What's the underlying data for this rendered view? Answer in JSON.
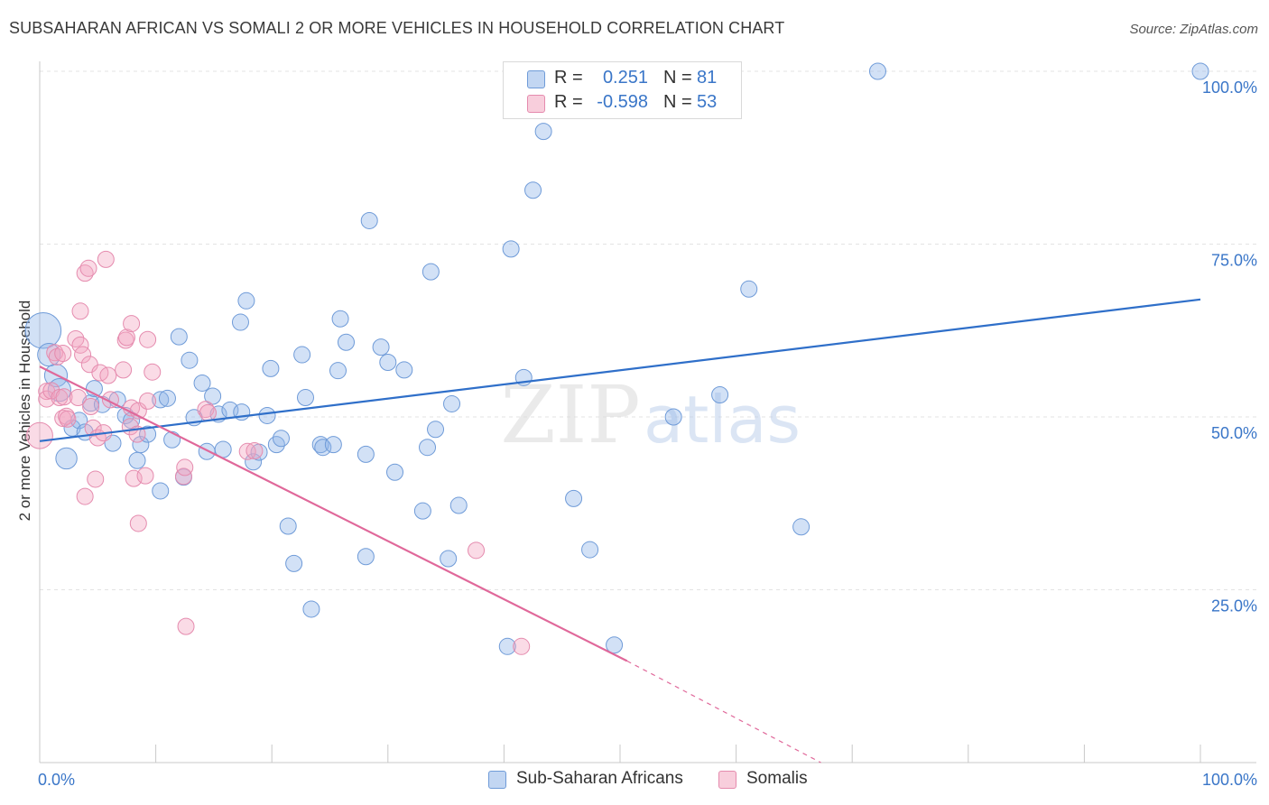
{
  "header": {
    "title": "SUBSAHARAN AFRICAN VS SOMALI 2 OR MORE VEHICLES IN HOUSEHOLD CORRELATION CHART",
    "source": "Source: ZipAtlas.com"
  },
  "watermark": {
    "zip": "ZIP",
    "atlas": "atlas"
  },
  "legend": {
    "rows": [
      {
        "r_label": "R =",
        "r_value": "0.251",
        "n_label": "N =",
        "n_value": "81",
        "color": "#8fb4e8"
      },
      {
        "r_label": "R =",
        "r_value": "-0.598",
        "n_label": "N =",
        "n_value": "53",
        "color": "#f2a5c0"
      }
    ]
  },
  "bottom_legend": {
    "items": [
      {
        "label": "Sub-Saharan Africans",
        "color": "#8fb4e8"
      },
      {
        "label": "Somalis",
        "color": "#f2a5c0"
      }
    ]
  },
  "chart_data": {
    "type": "scatter",
    "title": "SUBSAHARAN AFRICAN VS SOMALI 2 OR MORE VEHICLES IN HOUSEHOLD CORRELATION CHART",
    "xlabel": "",
    "ylabel": "2 or more Vehicles in Household",
    "xlim": [
      0,
      100
    ],
    "ylim": [
      0,
      100
    ],
    "x_tick_labels": [
      {
        "value": 0,
        "label": "0.0%"
      },
      {
        "value": 100,
        "label": "100.0%"
      }
    ],
    "y_tick_labels": [
      {
        "value": 25,
        "label": "25.0%"
      },
      {
        "value": 50,
        "label": "50.0%"
      },
      {
        "value": 75,
        "label": "75.0%"
      },
      {
        "value": 100,
        "label": "100.0%"
      }
    ],
    "grid": "horizontal dashed",
    "legend_position": "top-center",
    "series": [
      {
        "name": "Sub-Saharan Africans",
        "color": "#8fb4e8",
        "trend_color": "#2f6fc9",
        "trend": {
          "x": [
            0,
            100
          ],
          "y": [
            46.5,
            67.0
          ]
        },
        "points": [
          [
            0.3,
            62.5,
            2.2
          ],
          [
            0.8,
            59.0,
            1.4
          ],
          [
            1.4,
            56.0,
            1.4
          ],
          [
            1.7,
            53.9,
            1.4
          ],
          [
            2.3,
            44.0,
            1.3
          ],
          [
            2.8,
            48.4,
            1.0
          ],
          [
            3.4,
            49.5,
            1.0
          ],
          [
            3.9,
            47.8,
            1.0
          ],
          [
            4.4,
            52.0,
            1.0
          ],
          [
            4.7,
            54.1,
            1.0
          ],
          [
            5.4,
            51.8,
            1.0
          ],
          [
            6.3,
            46.2,
            1.0
          ],
          [
            6.7,
            52.5,
            1.0
          ],
          [
            7.4,
            50.2,
            1.0
          ],
          [
            7.9,
            49.5,
            1.0
          ],
          [
            8.4,
            43.7,
            1.0
          ],
          [
            8.7,
            46.0,
            1.0
          ],
          [
            9.3,
            47.5,
            1.0
          ],
          [
            10.4,
            52.5,
            1.0
          ],
          [
            10.4,
            39.3,
            1.0
          ],
          [
            11.0,
            52.7,
            1.0
          ],
          [
            11.4,
            46.7,
            1.0
          ],
          [
            12.0,
            61.6,
            1.0
          ],
          [
            12.4,
            41.3,
            1.0
          ],
          [
            12.9,
            58.2,
            1.0
          ],
          [
            13.3,
            49.9,
            1.0
          ],
          [
            14.0,
            54.9,
            1.0
          ],
          [
            14.4,
            45.0,
            1.0
          ],
          [
            14.9,
            53.0,
            1.0
          ],
          [
            15.4,
            50.4,
            1.0
          ],
          [
            15.8,
            45.3,
            1.0
          ],
          [
            16.4,
            51.0,
            1.0
          ],
          [
            17.3,
            63.7,
            1.0
          ],
          [
            17.4,
            50.7,
            1.0
          ],
          [
            17.8,
            66.8,
            1.0
          ],
          [
            18.4,
            43.5,
            1.0
          ],
          [
            18.9,
            44.9,
            1.0
          ],
          [
            19.6,
            50.2,
            1.0
          ],
          [
            19.9,
            57.0,
            1.0
          ],
          [
            20.4,
            46.0,
            1.0
          ],
          [
            20.8,
            46.9,
            1.0
          ],
          [
            21.4,
            34.2,
            1.0
          ],
          [
            21.9,
            28.8,
            1.0
          ],
          [
            22.6,
            59.0,
            1.0
          ],
          [
            22.9,
            52.8,
            1.0
          ],
          [
            23.4,
            22.2,
            1.0
          ],
          [
            24.2,
            46.0,
            1.0
          ],
          [
            24.4,
            45.6,
            1.0
          ],
          [
            25.3,
            46.0,
            1.0
          ],
          [
            25.7,
            56.7,
            1.0
          ],
          [
            25.9,
            64.2,
            1.0
          ],
          [
            26.4,
            60.8,
            1.0
          ],
          [
            28.1,
            44.6,
            1.0
          ],
          [
            28.1,
            29.8,
            1.0
          ],
          [
            28.4,
            78.4,
            1.0
          ],
          [
            29.4,
            60.1,
            1.0
          ],
          [
            30.0,
            57.9,
            1.0
          ],
          [
            30.6,
            42.0,
            1.0
          ],
          [
            31.4,
            56.8,
            1.0
          ],
          [
            33.0,
            36.4,
            1.0
          ],
          [
            33.4,
            45.6,
            1.0
          ],
          [
            33.7,
            71.0,
            1.0
          ],
          [
            34.1,
            48.2,
            1.0
          ],
          [
            35.2,
            29.5,
            1.0
          ],
          [
            35.5,
            51.9,
            1.0
          ],
          [
            36.1,
            37.2,
            1.0
          ],
          [
            40.3,
            16.8,
            1.0
          ],
          [
            40.6,
            74.3,
            1.0
          ],
          [
            41.7,
            55.7,
            1.0
          ],
          [
            42.5,
            82.8,
            1.0
          ],
          [
            43.4,
            91.3,
            1.0
          ],
          [
            46.0,
            38.2,
            1.0
          ],
          [
            47.4,
            30.8,
            1.0
          ],
          [
            49.5,
            17.0,
            1.0
          ],
          [
            54.6,
            50.0,
            1.0
          ],
          [
            58.6,
            53.2,
            1.0
          ],
          [
            61.1,
            68.5,
            1.0
          ],
          [
            65.6,
            34.1,
            1.0
          ],
          [
            72.2,
            100.0,
            1.0
          ],
          [
            100.0,
            100.0,
            1.0
          ]
        ]
      },
      {
        "name": "Somalis",
        "color": "#f2a5c0",
        "trend_color": "#e0689a",
        "trend": {
          "x": [
            0,
            50.6
          ],
          "y": [
            57.3,
            14.7
          ]
        },
        "trend_dashed": {
          "x": [
            50.6,
            67.3
          ],
          "y": [
            14.7,
            0.0
          ]
        },
        "points": [
          [
            0.0,
            47.3,
            1.6
          ],
          [
            0.6,
            53.7,
            1.0
          ],
          [
            0.6,
            52.6,
            1.0
          ],
          [
            1.0,
            53.8,
            1.0
          ],
          [
            1.3,
            59.3,
            1.0
          ],
          [
            1.5,
            58.7,
            1.0
          ],
          [
            1.7,
            52.8,
            1.0
          ],
          [
            2.0,
            49.8,
            1.0
          ],
          [
            2.0,
            59.2,
            1.0
          ],
          [
            2.1,
            52.9,
            1.0
          ],
          [
            2.3,
            50.1,
            1.0
          ],
          [
            2.4,
            49.7,
            1.0
          ],
          [
            3.1,
            61.3,
            1.0
          ],
          [
            3.3,
            52.8,
            1.0
          ],
          [
            3.5,
            65.3,
            1.0
          ],
          [
            3.5,
            60.4,
            1.0
          ],
          [
            3.7,
            59.0,
            1.0
          ],
          [
            3.9,
            38.5,
            1.0
          ],
          [
            3.9,
            70.8,
            1.0
          ],
          [
            4.2,
            71.5,
            1.0
          ],
          [
            4.3,
            57.6,
            1.0
          ],
          [
            4.4,
            51.5,
            1.0
          ],
          [
            4.6,
            48.4,
            1.0
          ],
          [
            4.8,
            41.0,
            1.0
          ],
          [
            5.0,
            47.0,
            1.0
          ],
          [
            5.2,
            56.4,
            1.0
          ],
          [
            5.5,
            47.7,
            1.0
          ],
          [
            5.7,
            72.8,
            1.0
          ],
          [
            5.9,
            56.0,
            1.0
          ],
          [
            6.1,
            52.5,
            1.0
          ],
          [
            7.2,
            56.8,
            1.0
          ],
          [
            7.4,
            61.1,
            1.0
          ],
          [
            7.5,
            61.5,
            1.0
          ],
          [
            7.8,
            48.6,
            1.0
          ],
          [
            7.9,
            51.3,
            1.0
          ],
          [
            7.9,
            63.5,
            1.0
          ],
          [
            8.1,
            41.1,
            1.0
          ],
          [
            8.4,
            47.5,
            1.0
          ],
          [
            8.5,
            50.9,
            1.0
          ],
          [
            8.5,
            34.6,
            1.0
          ],
          [
            9.1,
            41.5,
            1.0
          ],
          [
            9.3,
            61.2,
            1.0
          ],
          [
            9.3,
            52.3,
            1.0
          ],
          [
            9.7,
            56.5,
            1.0
          ],
          [
            12.4,
            41.4,
            1.0
          ],
          [
            12.5,
            42.7,
            1.0
          ],
          [
            12.6,
            19.7,
            1.0
          ],
          [
            14.3,
            51.1,
            1.0
          ],
          [
            14.5,
            50.6,
            1.0
          ],
          [
            17.9,
            45.0,
            1.0
          ],
          [
            18.5,
            45.1,
            1.0
          ],
          [
            37.6,
            30.7,
            1.0
          ],
          [
            41.5,
            16.8,
            1.0
          ]
        ]
      }
    ]
  }
}
